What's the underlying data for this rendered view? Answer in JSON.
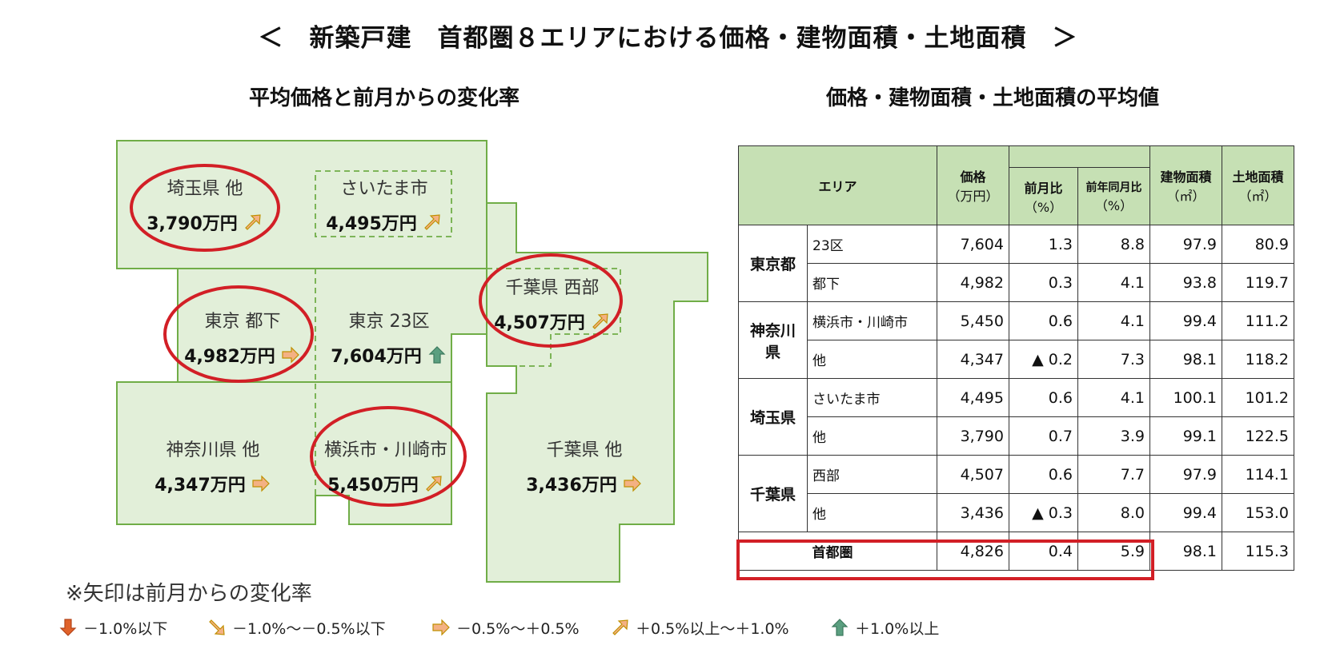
{
  "title": "＜　新築戸建　首都圏８エリアにおける価格・建物面積・土地面積　＞",
  "left_subtitle": "平均価格と前月からの変化率",
  "right_subtitle": "価格・建物面積・土地面積の平均値",
  "colors": {
    "map_fill": "#e2efd9",
    "map_stroke": "#70ad47",
    "header_fill": "#c6e0b4",
    "circle": "#d21f26"
  },
  "map_regions": [
    {
      "name": "埼玉県 他",
      "price": "3,790万円",
      "arrow": "up-right",
      "circled": true
    },
    {
      "name": "さいたま市",
      "price": "4,495万円",
      "arrow": "up-right",
      "circled": false
    },
    {
      "name": "東京 都下",
      "price": "4,982万円",
      "arrow": "right",
      "circled": true
    },
    {
      "name": "東京 23区",
      "price": "7,604万円",
      "arrow": "up",
      "circled": false
    },
    {
      "name": "千葉県 西部",
      "price": "4,507万円",
      "arrow": "up-right",
      "circled": true
    },
    {
      "name": "神奈川県 他",
      "price": "4,347万円",
      "arrow": "right",
      "circled": false
    },
    {
      "name": "横浜市・川崎市",
      "price": "5,450万円",
      "arrow": "up-right",
      "circled": true
    },
    {
      "name": "千葉県 他",
      "price": "3,436万円",
      "arrow": "right",
      "circled": false
    }
  ],
  "table": {
    "header_area": "エリア",
    "header_price": "価格",
    "header_price_unit": "（万円）",
    "header_mom": "前月比",
    "header_mom_unit": "（%）",
    "header_yoy": "前年同月比",
    "header_yoy_unit": "（%）",
    "header_building": "建物面積",
    "header_building_unit": "（㎡）",
    "header_land": "土地面積",
    "header_land_unit": "（㎡）",
    "groups": [
      {
        "pref": "東京都",
        "rows": [
          {
            "area": "23区",
            "price": "7,604",
            "mom": "1.3",
            "yoy": "8.8",
            "building": "97.9",
            "land": "80.9"
          },
          {
            "area": "都下",
            "price": "4,982",
            "mom": "0.3",
            "yoy": "4.1",
            "building": "93.8",
            "land": "119.7"
          }
        ]
      },
      {
        "pref": "神奈川県",
        "rows": [
          {
            "area": "横浜市・川崎市",
            "price": "5,450",
            "mom": "0.6",
            "yoy": "4.1",
            "building": "99.4",
            "land": "111.2"
          },
          {
            "area": "他",
            "price": "4,347",
            "mom": "▲ 0.2",
            "yoy": "7.3",
            "building": "98.1",
            "land": "118.2"
          }
        ]
      },
      {
        "pref": "埼玉県",
        "rows": [
          {
            "area": "さいたま市",
            "price": "4,495",
            "mom": "0.6",
            "yoy": "4.1",
            "building": "100.1",
            "land": "101.2"
          },
          {
            "area": "他",
            "price": "3,790",
            "mom": "0.7",
            "yoy": "3.9",
            "building": "99.1",
            "land": "122.5"
          }
        ]
      },
      {
        "pref": "千葉県",
        "rows": [
          {
            "area": "西部",
            "price": "4,507",
            "mom": "0.6",
            "yoy": "7.7",
            "building": "97.9",
            "land": "114.1"
          },
          {
            "area": "他",
            "price": "3,436",
            "mom": "▲ 0.3",
            "yoy": "8.0",
            "building": "99.4",
            "land": "153.0"
          }
        ]
      }
    ],
    "total": {
      "area": "首都圏",
      "price": "4,826",
      "mom": "0.4",
      "yoy": "5.9",
      "building": "98.1",
      "land": "115.3"
    }
  },
  "note": "※矢印は前月からの変化率",
  "legend": [
    {
      "arrow": "down",
      "label": "－1.0%以下"
    },
    {
      "arrow": "down-right",
      "label": "－1.0%～－0.5%以下"
    },
    {
      "arrow": "right",
      "label": "－0.5%～＋0.5%"
    },
    {
      "arrow": "up-right",
      "label": "＋0.5%以上～＋1.0%"
    },
    {
      "arrow": "up",
      "label": "＋1.0%以上"
    }
  ],
  "chart_data": {
    "type": "table",
    "columns": [
      "エリア",
      "価格（万円）",
      "前月比（%）",
      "前年同月比（%）",
      "建物面積（㎡）",
      "土地面積（㎡）"
    ],
    "rows": [
      [
        "東京都 23区",
        7604,
        1.3,
        8.8,
        97.9,
        80.9
      ],
      [
        "東京都 都下",
        4982,
        0.3,
        4.1,
        93.8,
        119.7
      ],
      [
        "神奈川県 横浜市・川崎市",
        5450,
        0.6,
        4.1,
        99.4,
        111.2
      ],
      [
        "神奈川県 他",
        4347,
        -0.2,
        7.3,
        98.1,
        118.2
      ],
      [
        "埼玉県 さいたま市",
        4495,
        0.6,
        4.1,
        100.1,
        101.2
      ],
      [
        "埼玉県 他",
        3790,
        0.7,
        3.9,
        99.1,
        122.5
      ],
      [
        "千葉県 西部",
        4507,
        0.6,
        7.7,
        97.9,
        114.1
      ],
      [
        "千葉県 他",
        3436,
        -0.3,
        8.0,
        99.4,
        153.0
      ],
      [
        "首都圏",
        4826,
        0.4,
        5.9,
        98.1,
        115.3
      ]
    ]
  }
}
